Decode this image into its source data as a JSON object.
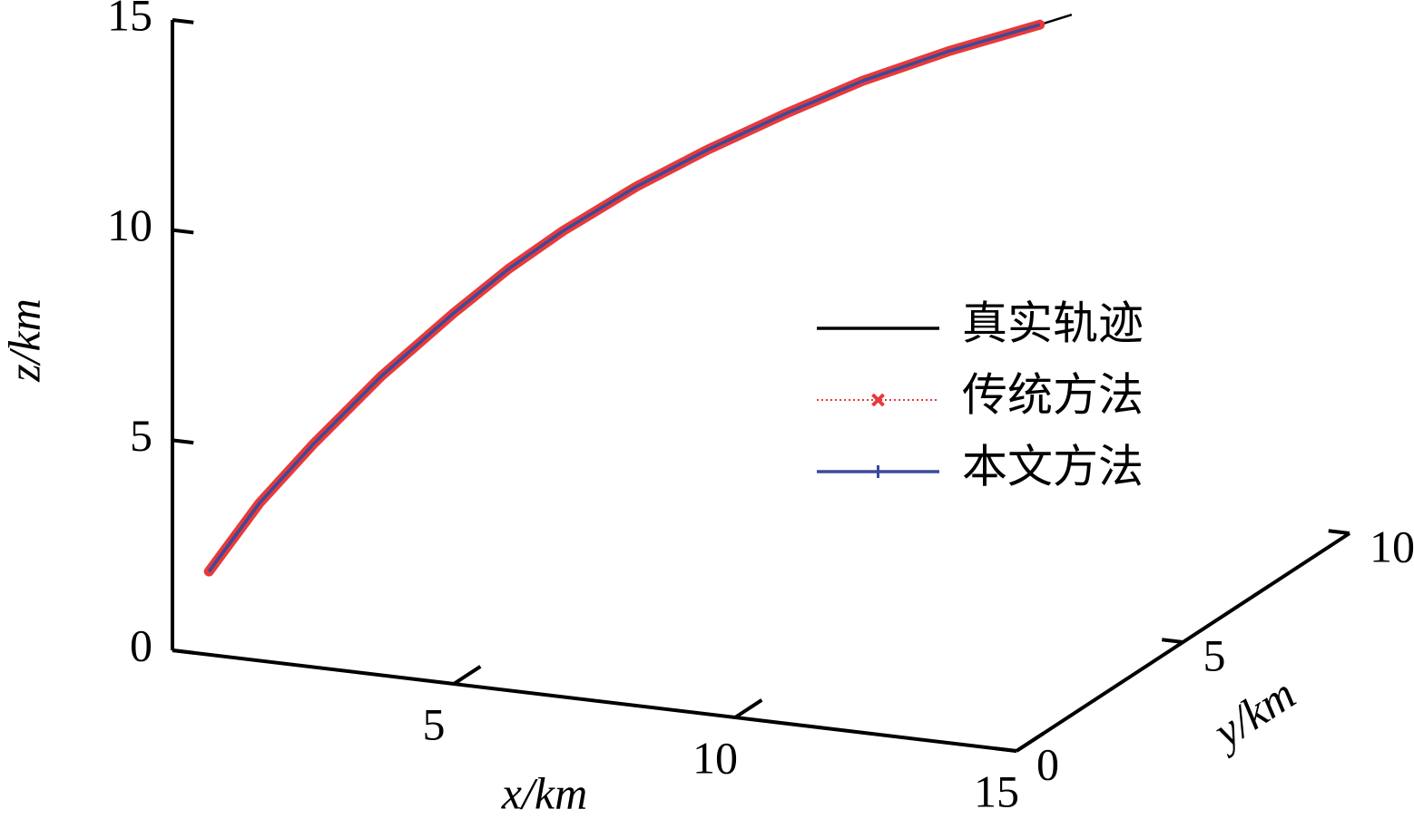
{
  "chart_data": {
    "type": "line3d",
    "xlabel": "x/km",
    "ylabel": "y/km",
    "zlabel": "z/km",
    "xlim": [
      0,
      15
    ],
    "ylim": [
      0,
      10
    ],
    "zlim": [
      0,
      15
    ],
    "xticks": [
      5,
      10,
      15
    ],
    "yticks": [
      0,
      5,
      10
    ],
    "zticks": [
      0,
      5,
      10,
      15
    ],
    "series": [
      {
        "name": "真实轨迹",
        "color": "#000000",
        "style": "solid",
        "x": [
          0.63,
          1.5,
          2.43,
          3.6,
          4.86,
          5.8,
          6.74,
          8,
          9.25,
          10.6,
          11.91,
          13.4,
          14.97,
          15.52
        ],
        "y": [
          0.03,
          0.08,
          0.12,
          0.18,
          0.24,
          0.29,
          0.34,
          0.4,
          0.46,
          0.53,
          0.6,
          0.67,
          0.75,
          0.78
        ],
        "z": [
          1.96,
          3.7,
          5.23,
          7.0,
          8.68,
          9.85,
          10.88,
          12.1,
          13.16,
          14.2,
          15.14,
          16.05,
          16.89,
          17.2
        ]
      },
      {
        "name": "传统方法",
        "color": "#e8393a",
        "style": "dotted",
        "marker": "x",
        "x": [
          0.63,
          1.5,
          2.43,
          3.6,
          4.86,
          5.8,
          6.74,
          8,
          9.25,
          10.6,
          11.91,
          13.4,
          14.97
        ],
        "y": [
          0.03,
          0.08,
          0.12,
          0.18,
          0.24,
          0.29,
          0.34,
          0.4,
          0.46,
          0.53,
          0.6,
          0.67,
          0.75
        ],
        "z": [
          1.96,
          3.7,
          5.23,
          7.0,
          8.68,
          9.85,
          10.88,
          12.1,
          13.16,
          14.2,
          15.14,
          16.05,
          16.89
        ]
      },
      {
        "name": "本文方法",
        "color": "#3b4a9a",
        "style": "solid",
        "marker": "+",
        "x": [
          0.63,
          1.5,
          2.43,
          3.6,
          4.86,
          5.8,
          6.74,
          8,
          9.25,
          10.6,
          11.91,
          13.4,
          14.97
        ],
        "y": [
          0.03,
          0.08,
          0.12,
          0.18,
          0.24,
          0.29,
          0.34,
          0.4,
          0.46,
          0.53,
          0.6,
          0.67,
          0.75
        ],
        "z": [
          1.96,
          3.7,
          5.23,
          7.0,
          8.68,
          9.85,
          10.88,
          12.1,
          13.16,
          14.2,
          15.14,
          16.05,
          16.89
        ]
      }
    ]
  }
}
